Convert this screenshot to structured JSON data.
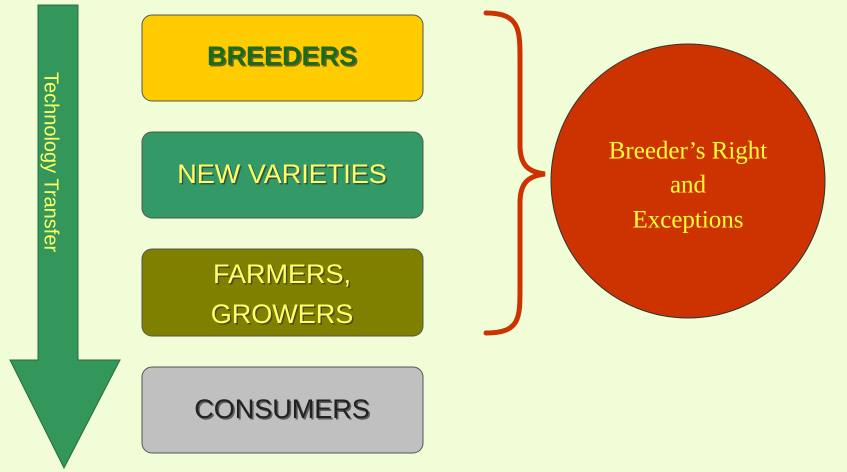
{
  "arrow": {
    "label": "Technology Transfer"
  },
  "boxes": [
    {
      "lines": [
        "BREEDERS"
      ]
    },
    {
      "lines": [
        "NEW VARIETIES"
      ]
    },
    {
      "lines": [
        "FARMERS,",
        "GROWERS"
      ]
    },
    {
      "lines": [
        "CONSUMERS"
      ]
    }
  ],
  "circle": {
    "lines": [
      "Breeder’s Right",
      "and",
      "Exceptions"
    ]
  }
}
